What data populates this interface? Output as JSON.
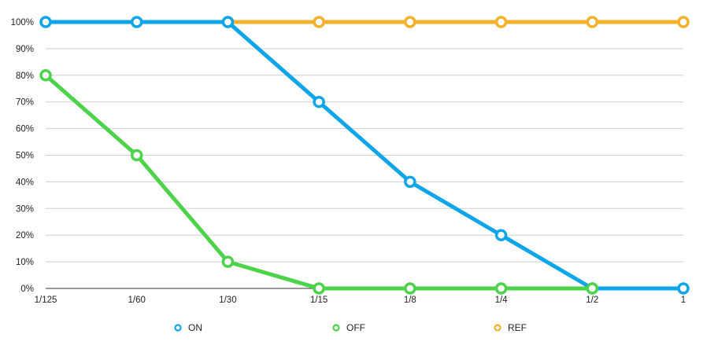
{
  "chart_data": {
    "type": "line",
    "categories": [
      "1/125",
      "1/60",
      "1/30",
      "1/15",
      "1/8",
      "1/4",
      "1/2",
      "1"
    ],
    "y_ticks": [
      "0%",
      "10%",
      "20%",
      "30%",
      "40%",
      "50%",
      "60%",
      "70%",
      "80%",
      "90%",
      "100%"
    ],
    "ylim": [
      0,
      100
    ],
    "grid": true,
    "legend_position": "bottom",
    "series": [
      {
        "name": "ON",
        "color": "#0ea5e9",
        "values": [
          100,
          100,
          100,
          70,
          40,
          20,
          0,
          0
        ]
      },
      {
        "name": "OFF",
        "color": "#4cd34a",
        "values": [
          80,
          50,
          10,
          0,
          0,
          0,
          0,
          null
        ]
      },
      {
        "name": "REF",
        "color": "#f5b02c",
        "values": [
          null,
          null,
          100,
          100,
          100,
          100,
          100,
          100
        ]
      }
    ]
  }
}
